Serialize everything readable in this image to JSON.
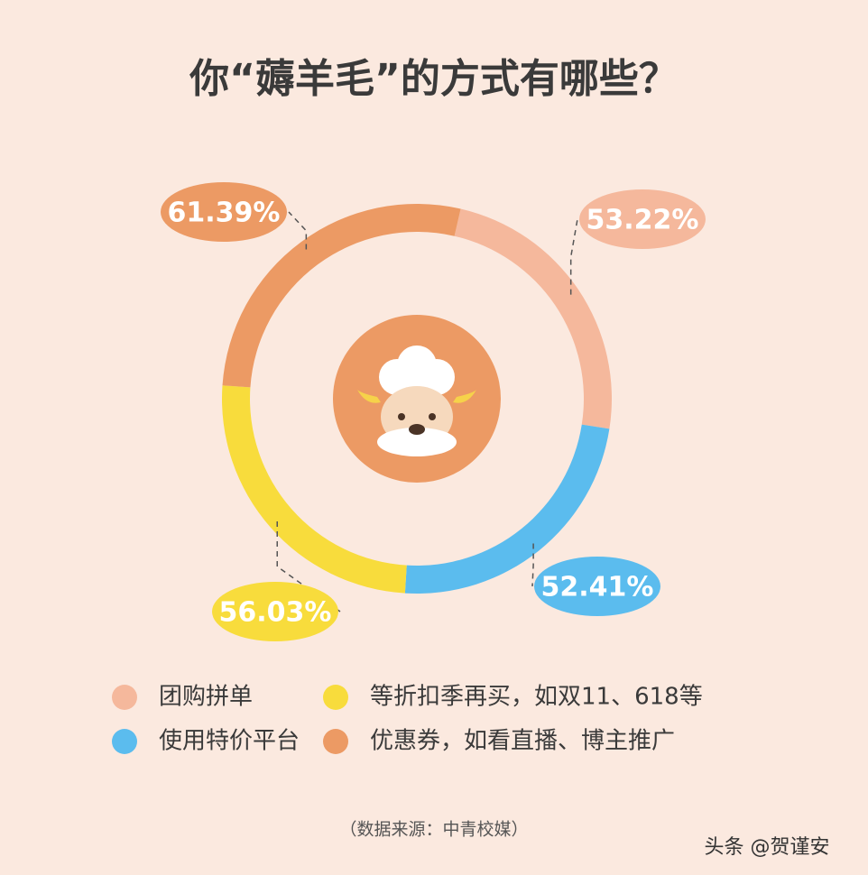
{
  "chart_data": {
    "type": "donut",
    "title": "你“薅羊毛”的方式有哪些？",
    "series": [
      {
        "name": "团购拼单",
        "color": "#f5b89c",
        "values": [
          53.22
        ],
        "value_labels": [
          "53.22%"
        ]
      },
      {
        "name": "使用特价平台",
        "color": "#5bbcee",
        "values": [
          52.41
        ],
        "value_labels": [
          "52.41%"
        ]
      },
      {
        "name": "等折扣季再买，如双11、618等",
        "color": "#f8dc3c",
        "values": [
          56.03
        ],
        "value_labels": [
          "56.03%"
        ]
      },
      {
        "name": "优惠券，如看直播、博主推广",
        "color": "#ec9a64",
        "values": [
          61.39
        ],
        "value_labels": [
          "61.39%"
        ]
      }
    ],
    "source": "（数据来源：中青校媒）",
    "watermark": "头条 @贺谨安"
  }
}
